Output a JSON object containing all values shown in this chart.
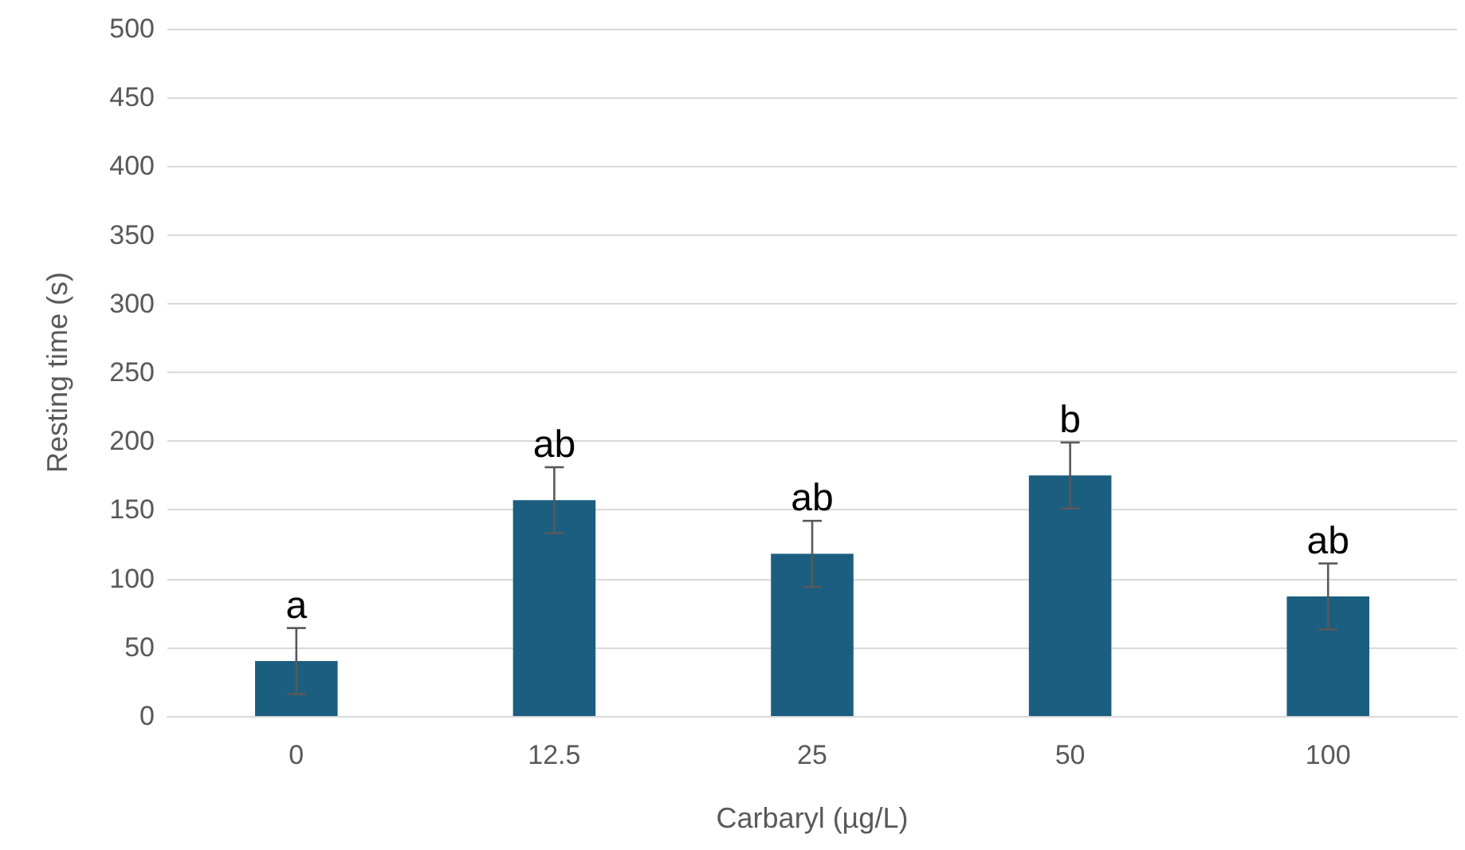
{
  "chart_data": {
    "type": "bar",
    "xlabel": "Carbaryl (µg/L)",
    "ylabel": "Resting time (s)",
    "categories": [
      "0",
      "12.5",
      "25",
      "50",
      "100"
    ],
    "values": [
      40,
      157,
      118,
      175,
      87
    ],
    "color": "#1b5e80",
    "errors": [
      24,
      24,
      24,
      24,
      24
    ],
    "ylim": [
      0,
      500
    ],
    "yticks": [
      0,
      50,
      100,
      150,
      200,
      250,
      300,
      350,
      400,
      450,
      500
    ],
    "grid": "y",
    "annotations": [
      {
        "text": "a",
        "x": "0",
        "y": 64
      },
      {
        "text": "ab",
        "x": "12.5",
        "y": 181
      },
      {
        "text": "ab",
        "x": "25",
        "y": 142
      },
      {
        "text": "b",
        "x": "50",
        "y": 199
      },
      {
        "text": "ab",
        "x": "100",
        "y": 111
      }
    ]
  }
}
